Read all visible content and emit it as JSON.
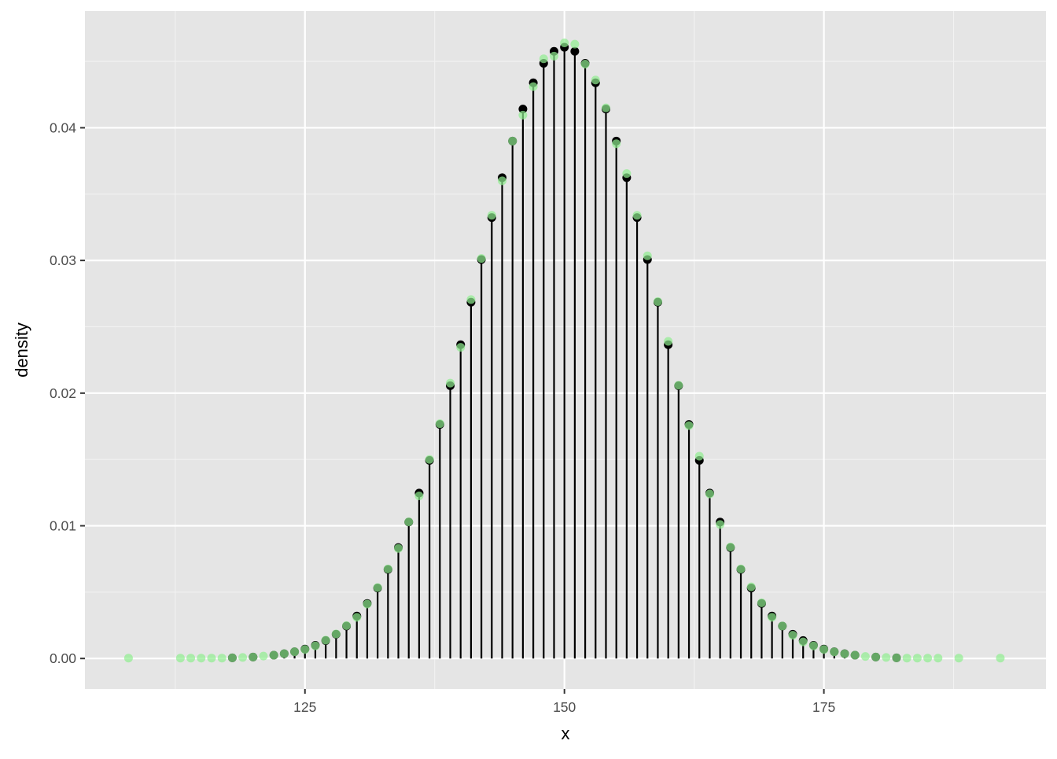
{
  "chart_data": {
    "type": "scatter",
    "title": "",
    "xlabel": "x",
    "ylabel": "density",
    "xlim": [
      103.8,
      196.4
    ],
    "ylim": [
      -0.0023,
      0.0488
    ],
    "x_ticks": [
      125,
      150,
      175
    ],
    "x_tick_labels": [
      "125",
      "150",
      "175"
    ],
    "y_ticks": [
      0,
      0.01,
      0.02,
      0.03,
      0.04
    ],
    "y_tick_labels": [
      "0.00",
      "0.01",
      "0.02",
      "0.03",
      "0.04"
    ],
    "grid": true,
    "panel_background": "#e5e5e5",
    "series": [
      {
        "style": "lollipop",
        "color": "#000000",
        "x": [
          118,
          120,
          122,
          123,
          124,
          125,
          126,
          127,
          128,
          129,
          130,
          131,
          132,
          133,
          134,
          135,
          136,
          137,
          138,
          139,
          140,
          141,
          142,
          143,
          144,
          145,
          146,
          147,
          148,
          149,
          150,
          151,
          152,
          153,
          154,
          155,
          156,
          157,
          158,
          159,
          160,
          161,
          162,
          163,
          164,
          165,
          166,
          167,
          168,
          169,
          170,
          171,
          172,
          173,
          174,
          175,
          176,
          177,
          178,
          180,
          182
        ],
        "y": [
          5e-05,
          0.00011,
          0.00025,
          0.00036,
          0.00051,
          0.00071,
          0.00099,
          0.00135,
          0.00183,
          0.00244,
          0.0032,
          0.00415,
          0.00531,
          0.00671,
          0.00836,
          0.01028,
          0.01247,
          0.01493,
          0.01764,
          0.02056,
          0.02365,
          0.02685,
          0.03007,
          0.03323,
          0.03624,
          0.039,
          0.04141,
          0.04339,
          0.04486,
          0.04576,
          0.04607,
          0.04576,
          0.04486,
          0.04339,
          0.04141,
          0.039,
          0.03624,
          0.03323,
          0.03007,
          0.02685,
          0.02365,
          0.02056,
          0.01764,
          0.01493,
          0.01247,
          0.01028,
          0.00836,
          0.00671,
          0.00531,
          0.00415,
          0.0032,
          0.00244,
          0.00183,
          0.00135,
          0.00099,
          0.00071,
          0.00051,
          0.00036,
          0.00025,
          0.00011,
          5e-05
        ]
      },
      {
        "style": "points",
        "color": "#90ee90",
        "opacity": 0.7,
        "x": [
          108,
          113,
          114,
          115,
          116,
          117,
          118,
          119,
          120,
          121,
          122,
          123,
          124,
          125,
          126,
          127,
          128,
          129,
          130,
          131,
          132,
          133,
          134,
          135,
          136,
          137,
          138,
          139,
          140,
          141,
          142,
          143,
          144,
          145,
          146,
          147,
          148,
          149,
          150,
          151,
          152,
          153,
          154,
          155,
          156,
          157,
          158,
          159,
          160,
          161,
          162,
          163,
          164,
          165,
          166,
          167,
          168,
          169,
          170,
          171,
          172,
          173,
          174,
          175,
          176,
          177,
          178,
          179,
          180,
          181,
          182,
          183,
          184,
          185,
          186,
          188,
          192
        ],
        "y": [
          3e-05,
          3e-05,
          3e-05,
          3e-05,
          3e-05,
          3e-05,
          5e-05,
          8e-05,
          0.00011,
          0.00018,
          0.00025,
          0.00036,
          0.00051,
          0.00068,
          0.00095,
          0.00138,
          0.00185,
          0.00248,
          0.0031,
          0.0041,
          0.00535,
          0.00675,
          0.0083,
          0.0103,
          0.01225,
          0.015,
          0.0177,
          0.02075,
          0.02345,
          0.02705,
          0.03015,
          0.0334,
          0.036,
          0.039,
          0.04095,
          0.0431,
          0.0452,
          0.0454,
          0.0464,
          0.0463,
          0.0448,
          0.0436,
          0.0415,
          0.0388,
          0.03655,
          0.0334,
          0.03035,
          0.0269,
          0.0239,
          0.0206,
          0.01755,
          0.01525,
          0.0124,
          0.0101,
          0.0084,
          0.00675,
          0.0054,
          0.0042,
          0.0031,
          0.00245,
          0.00175,
          0.00125,
          0.00095,
          0.00068,
          0.0005,
          0.00035,
          0.00025,
          0.00015,
          0.00011,
          8e-05,
          5e-05,
          3e-05,
          3e-05,
          3e-05,
          3e-05,
          3e-05,
          3e-05
        ]
      }
    ]
  }
}
